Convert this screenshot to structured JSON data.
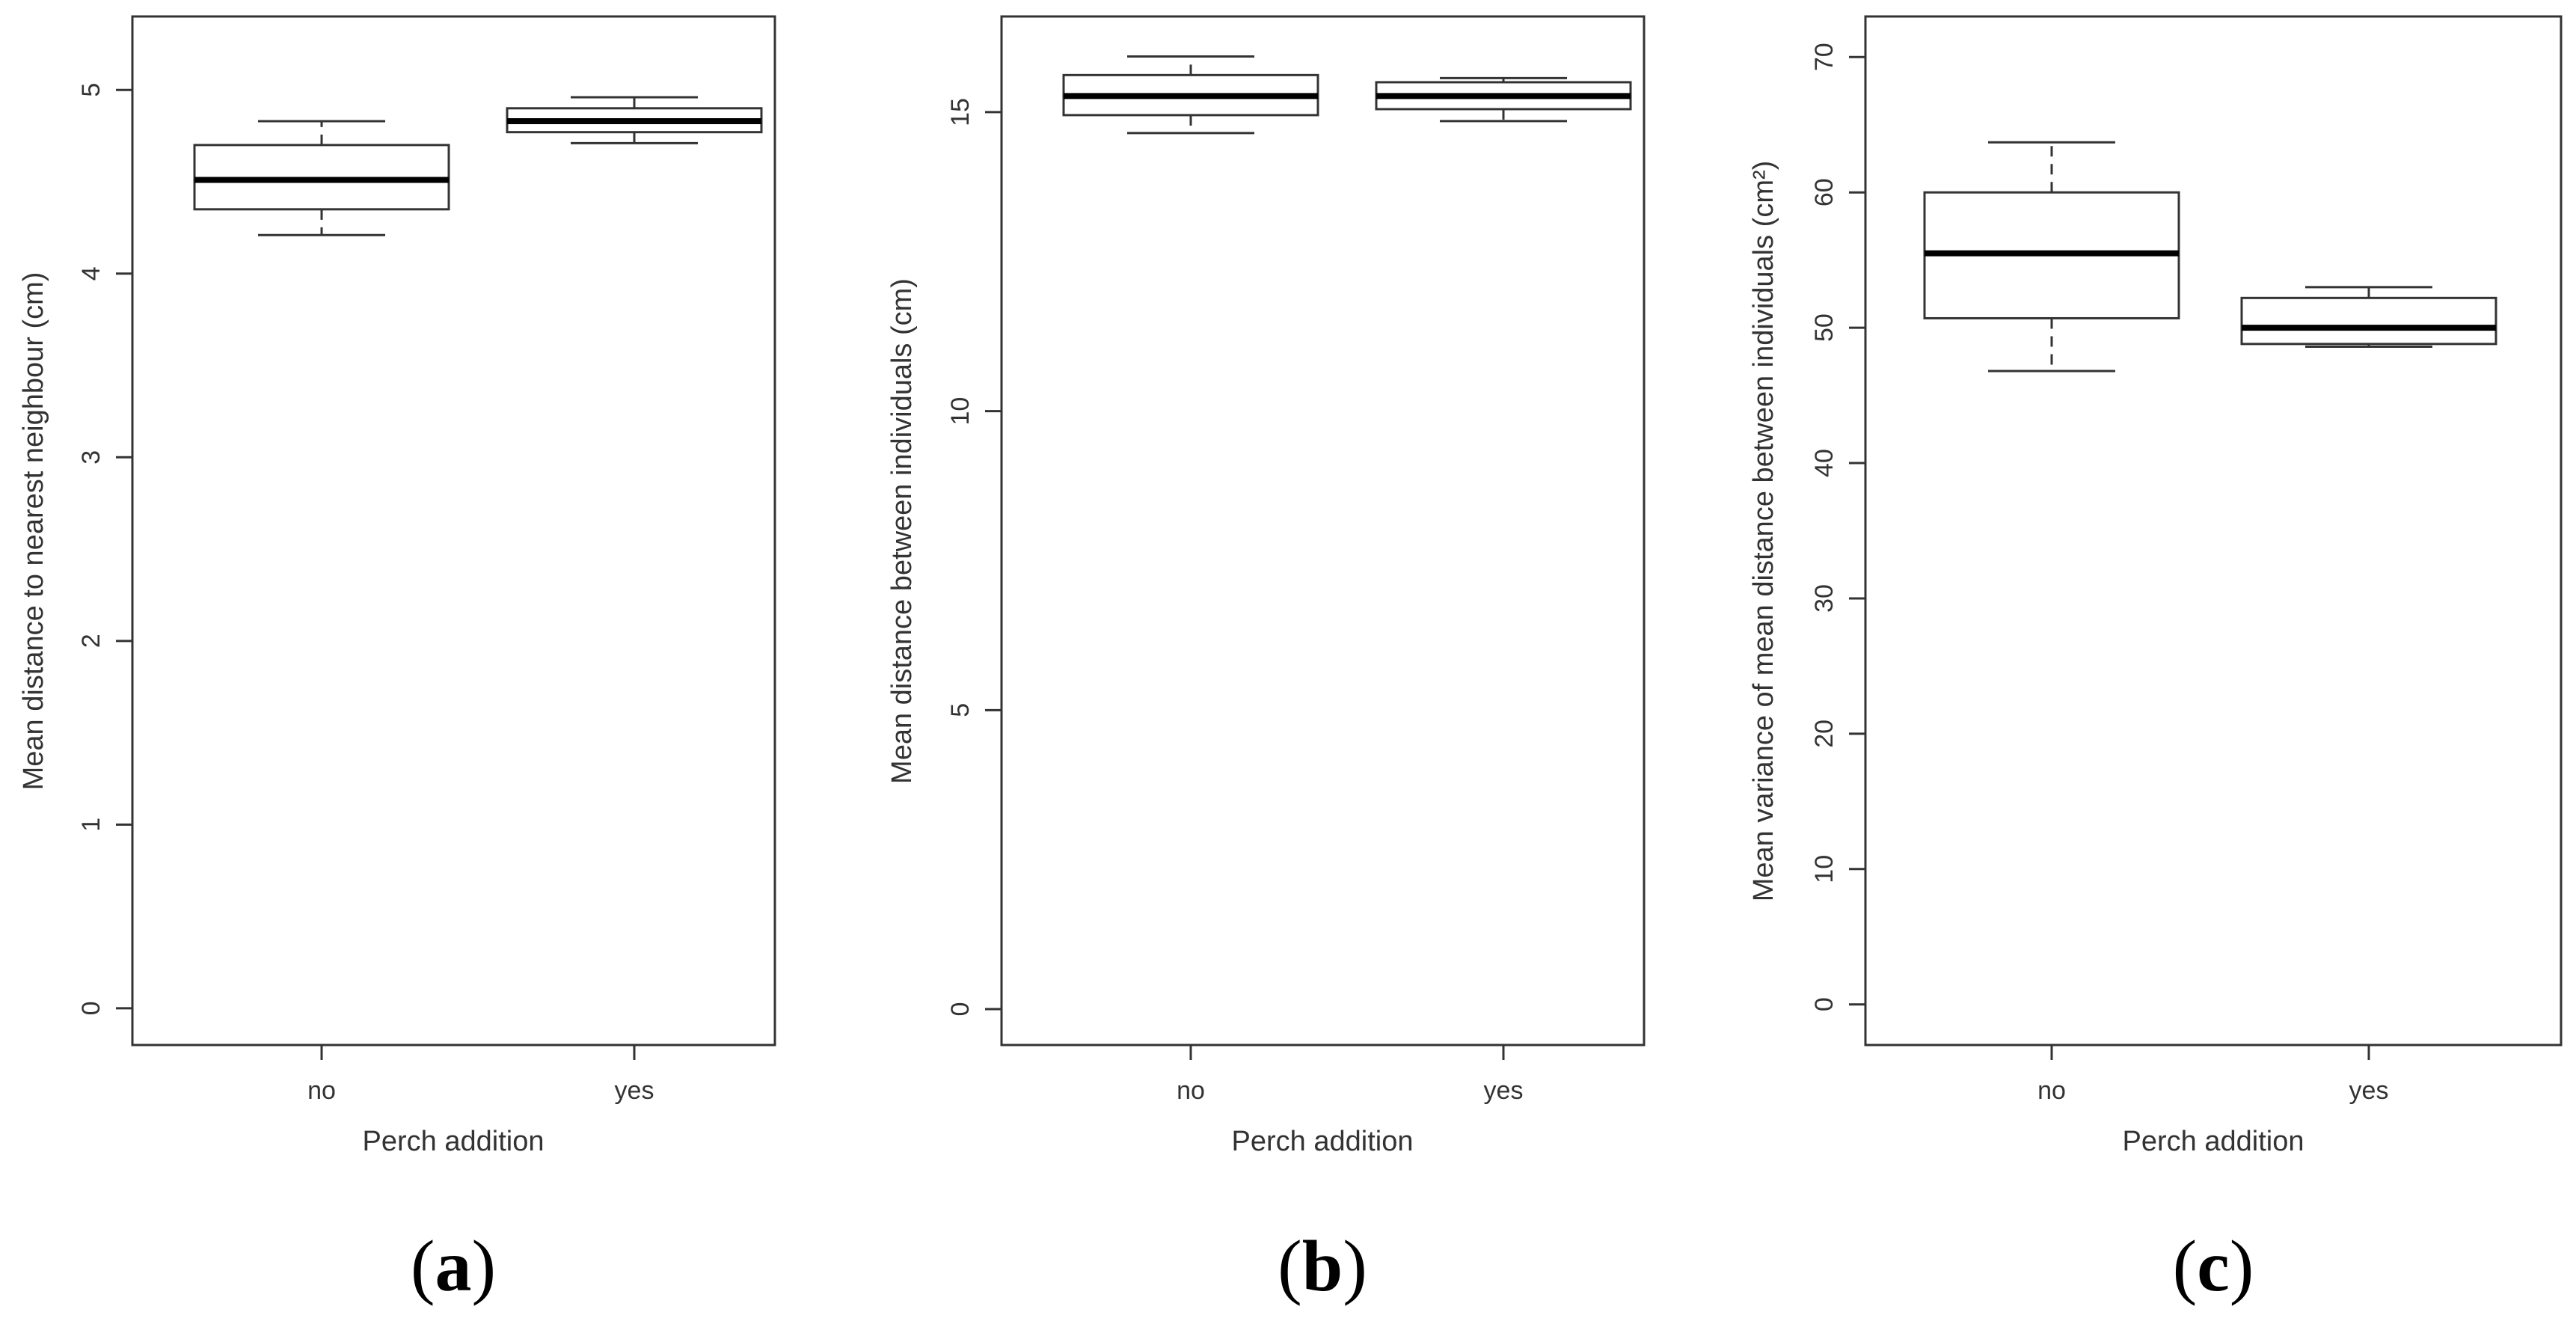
{
  "chart_data": [
    {
      "type": "boxplot",
      "panel_label": "a",
      "xlabel": "Perch addition",
      "ylabel": "Mean distance to nearest neighbour (cm)",
      "categories": [
        "no",
        "yes"
      ],
      "ylim": [
        -0.2,
        5.4
      ],
      "yticks": [
        0,
        1,
        2,
        3,
        4,
        5
      ],
      "boxes": [
        {
          "category": "no",
          "whisker_low": 4.21,
          "q1": 4.35,
          "median": 4.51,
          "q3": 4.7,
          "whisker_high": 4.83
        },
        {
          "category": "yes",
          "whisker_low": 4.71,
          "q1": 4.77,
          "median": 4.83,
          "q3": 4.9,
          "whisker_high": 4.96
        }
      ]
    },
    {
      "type": "boxplot",
      "panel_label": "b",
      "xlabel": "Perch addition",
      "ylabel": "Mean distance between individuals (cm)",
      "categories": [
        "no",
        "yes"
      ],
      "ylim": [
        -0.6,
        16.6
      ],
      "yticks": [
        0,
        5,
        10,
        15
      ],
      "boxes": [
        {
          "category": "no",
          "whisker_low": 14.65,
          "q1": 14.95,
          "median": 15.27,
          "q3": 15.62,
          "whisker_high": 15.93
        },
        {
          "category": "yes",
          "whisker_low": 14.85,
          "q1": 15.05,
          "median": 15.27,
          "q3": 15.5,
          "whisker_high": 15.57
        }
      ]
    },
    {
      "type": "boxplot",
      "panel_label": "c",
      "xlabel": "Perch addition",
      "ylabel": "Mean variance of mean distance between individuals (cm²)",
      "categories": [
        "no",
        "yes"
      ],
      "ylim": [
        -3,
        73
      ],
      "yticks": [
        0,
        10,
        20,
        30,
        40,
        50,
        60,
        70
      ],
      "boxes": [
        {
          "category": "no",
          "whisker_low": 46.8,
          "q1": 50.7,
          "median": 55.5,
          "q3": 60.0,
          "whisker_high": 63.7
        },
        {
          "category": "yes",
          "whisker_low": 48.6,
          "q1": 48.8,
          "median": 50.0,
          "q3": 52.2,
          "whisker_high": 53.0
        }
      ]
    }
  ]
}
